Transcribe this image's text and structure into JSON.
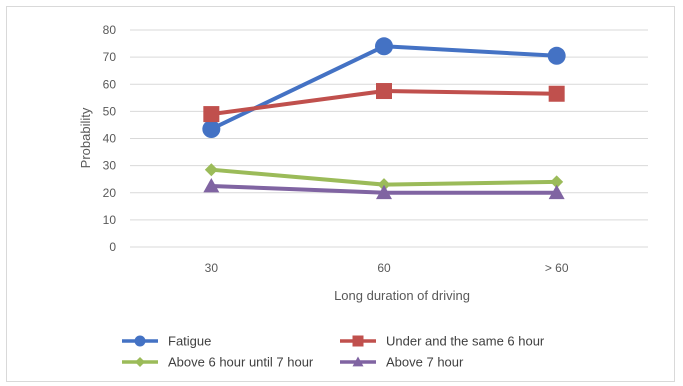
{
  "chart_data": {
    "type": "line",
    "categories": [
      "30",
      "60",
      "> 60"
    ],
    "xlabel": "Long duration of driving",
    "ylabel": "Probability",
    "ylim": [
      0,
      80
    ],
    "yticks": [
      0,
      10,
      20,
      30,
      40,
      50,
      60,
      70,
      80
    ],
    "grid": true,
    "legend_position": "bottom",
    "series": [
      {
        "name": "Fatigue",
        "values": [
          43.5,
          74,
          70.5
        ],
        "color": "#4472c4",
        "marker": "circle"
      },
      {
        "name": "Under and the same 6 hour",
        "values": [
          49,
          57.5,
          56.5
        ],
        "color": "#c0504d",
        "marker": "square"
      },
      {
        "name": "Above 6 hour until 7 hour",
        "values": [
          28.5,
          23,
          24
        ],
        "color": "#9bbb59",
        "marker": "diamond"
      },
      {
        "name": "Above 7 hour",
        "values": [
          22.5,
          20,
          20
        ],
        "color": "#8064a2",
        "marker": "triangle"
      }
    ]
  }
}
